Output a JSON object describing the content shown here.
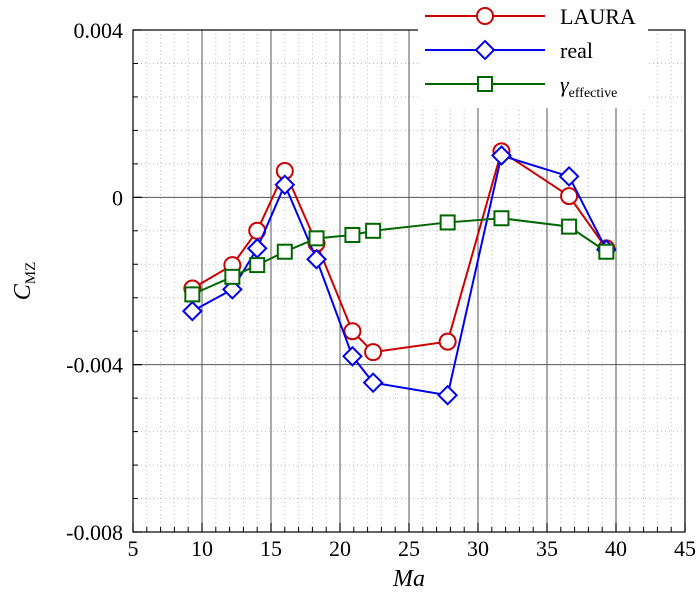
{
  "chart_data": {
    "type": "line",
    "xlabel": "Ma",
    "ylabel": {
      "main": "C",
      "sub": "MZ"
    },
    "xlim": [
      5,
      45
    ],
    "ylim": [
      -0.008,
      0.004
    ],
    "xticks": [
      5,
      10,
      15,
      20,
      25,
      30,
      35,
      40,
      45
    ],
    "xtick_labels": [
      "5",
      "10",
      "15",
      "20",
      "25",
      "30",
      "35",
      "40",
      "45"
    ],
    "yticks": [
      -0.008,
      -0.004,
      0,
      0.004
    ],
    "ytick_labels": [
      "-0.008",
      "-0.004",
      "0",
      "0.004"
    ],
    "grid": true,
    "legend_position": "top-right",
    "series": [
      {
        "name": "LAURA",
        "marker": "circle",
        "color": "#cc0000",
        "x": [
          9.3,
          12.2,
          14,
          16,
          18.3,
          20.9,
          22.4,
          27.8,
          31.7,
          36.6,
          39.3
        ],
        "y": [
          -0.00218,
          -0.00162,
          -0.0008,
          0.00063,
          -0.0011,
          -0.0032,
          -0.0037,
          -0.00345,
          0.0011,
          3e-05,
          -0.00122
        ]
      },
      {
        "name": "real",
        "marker": "diamond",
        "color": "#0000ee",
        "x": [
          9.3,
          12.2,
          14,
          16,
          18.3,
          20.9,
          22.4,
          27.8,
          31.7,
          36.6,
          39.3
        ],
        "y": [
          -0.00272,
          -0.0022,
          -0.00122,
          0.0003,
          -0.00148,
          -0.0038,
          -0.00443,
          -0.00473,
          0.001,
          0.0005,
          -0.00125
        ]
      },
      {
        "name": "γ",
        "name_sub": "effective",
        "marker": "square",
        "color": "#006600",
        "x": [
          9.3,
          12.2,
          14,
          16,
          18.3,
          20.9,
          22.4,
          27.8,
          31.7,
          36.6,
          39.3
        ],
        "y": [
          -0.00232,
          -0.0019,
          -0.00162,
          -0.0013,
          -0.00098,
          -0.0009,
          -0.0008,
          -0.0006,
          -0.0005,
          -0.0007,
          -0.0013
        ]
      }
    ]
  }
}
